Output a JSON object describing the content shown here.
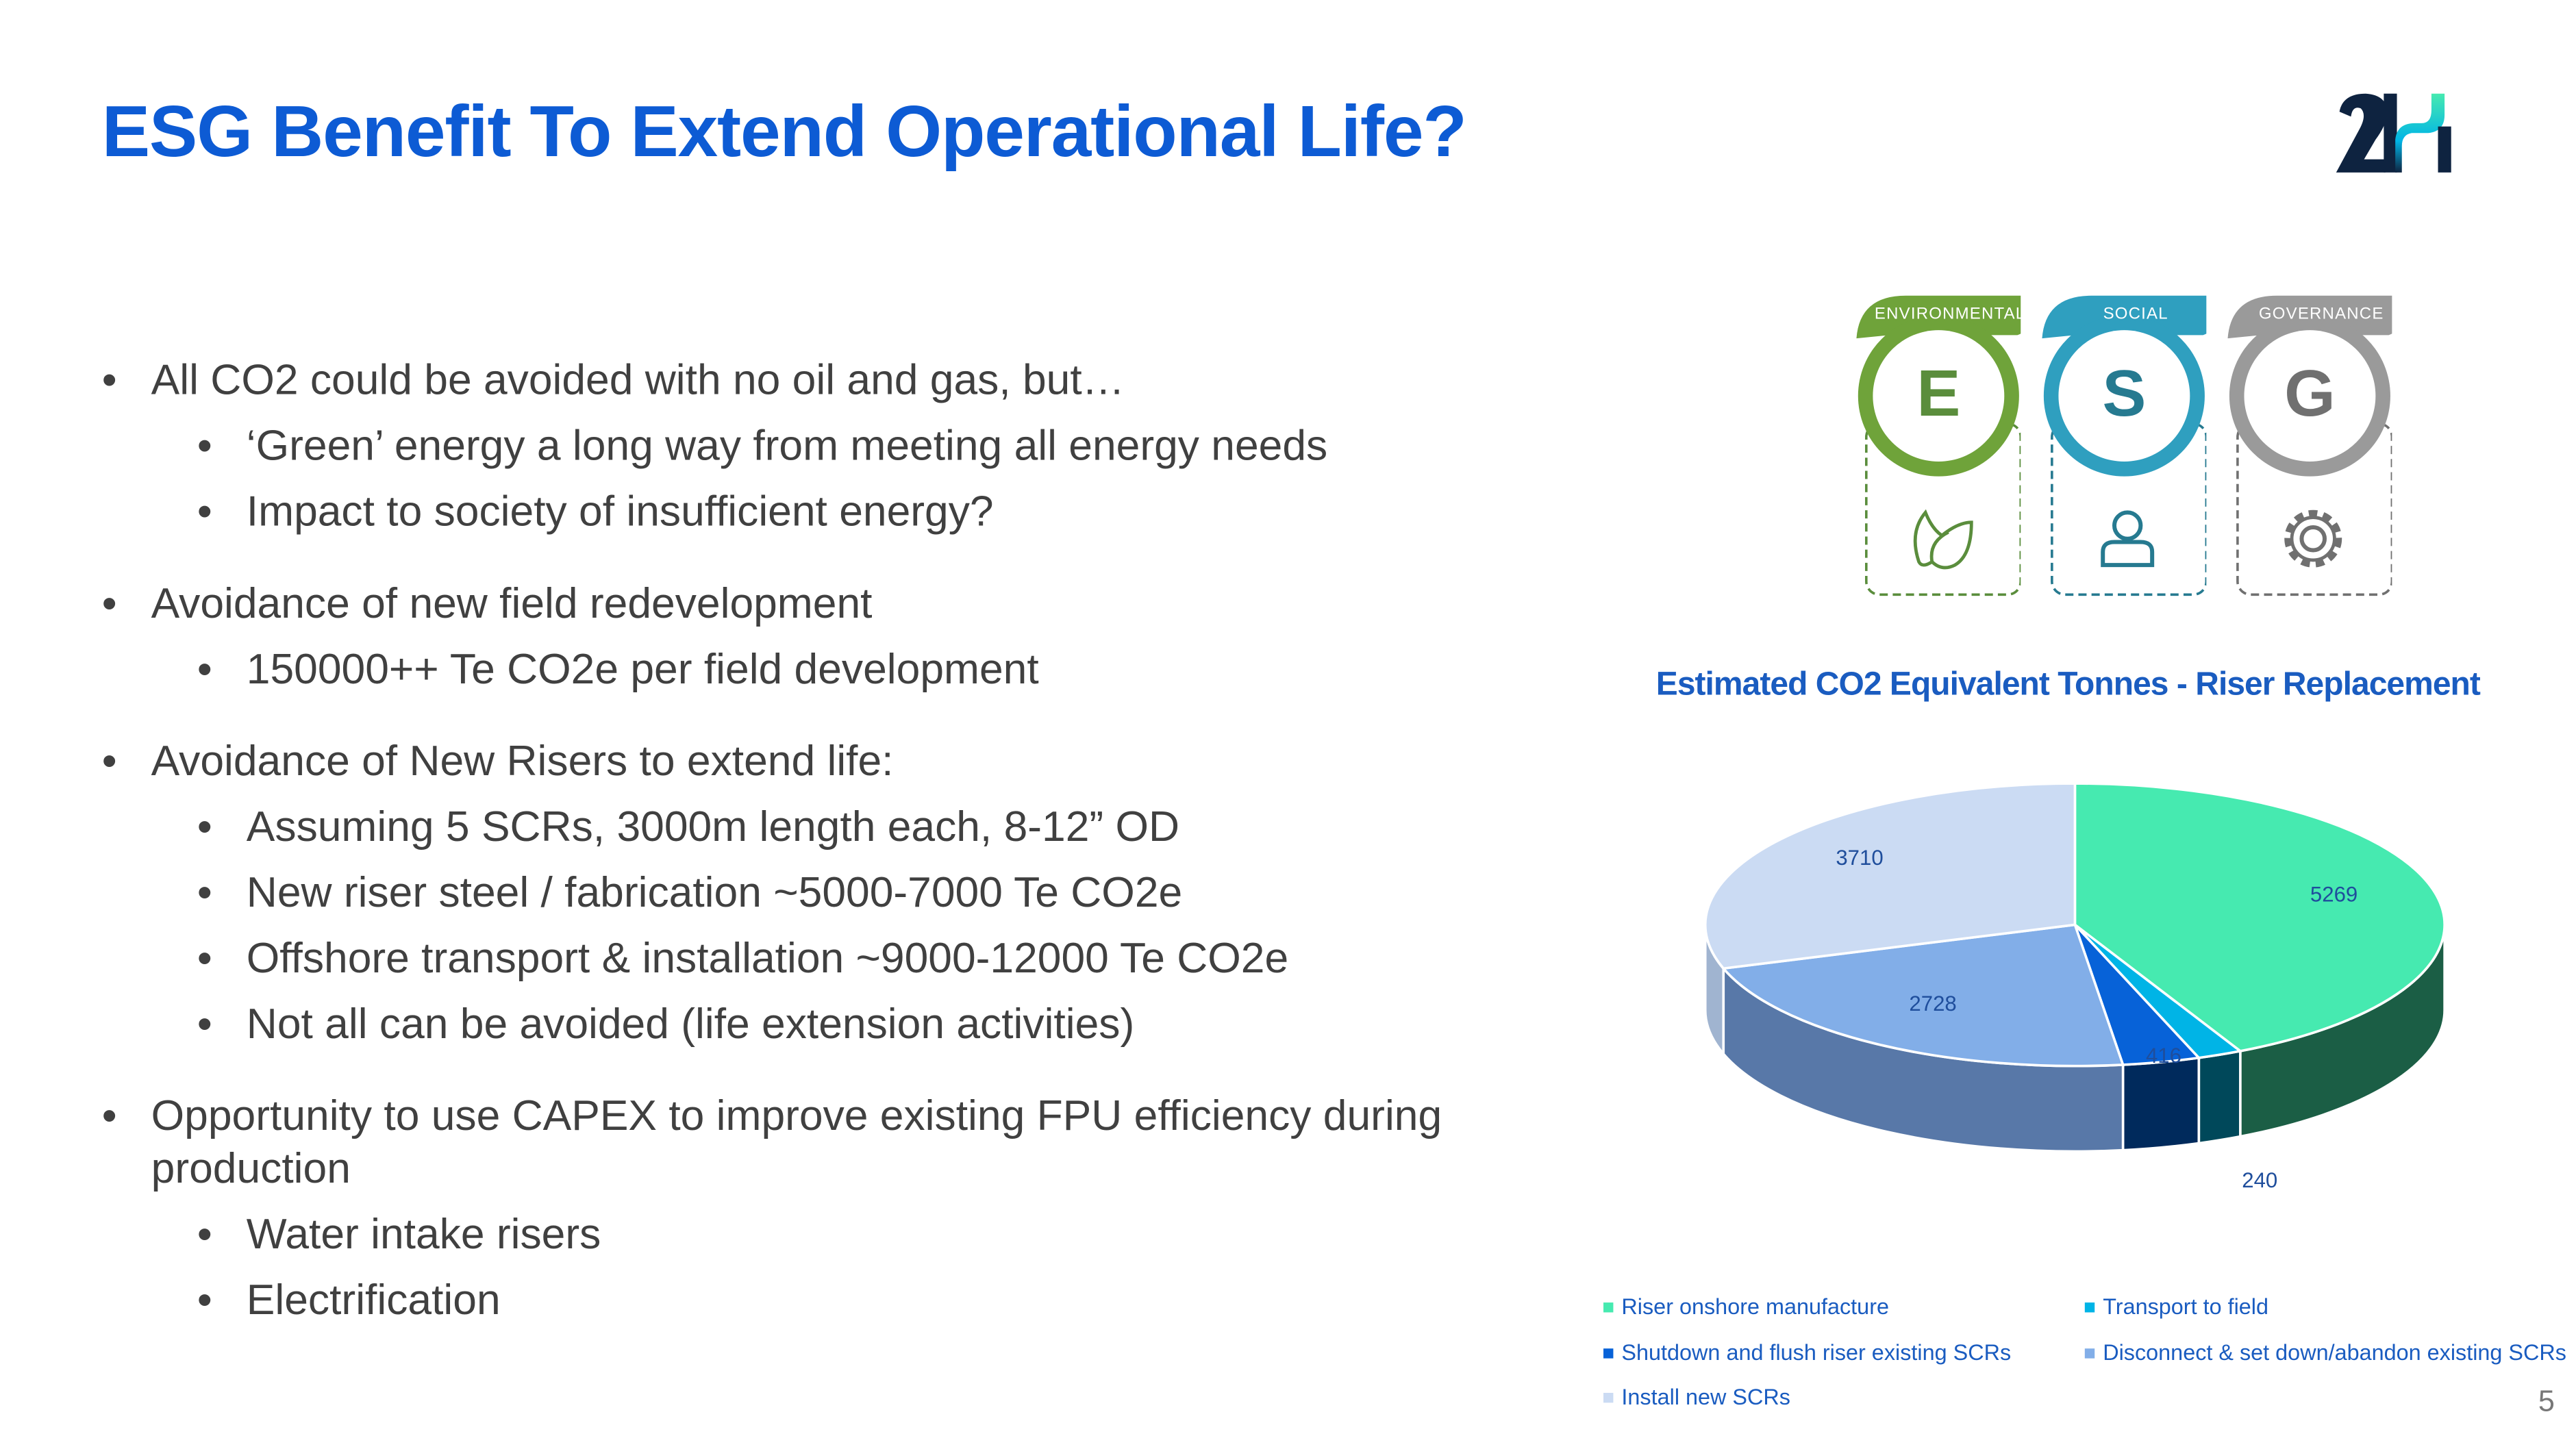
{
  "title": "ESG Benefit To Extend Operational Life?",
  "logo_text": "2H",
  "bullets": [
    {
      "level": 1,
      "text": "All CO2 could be avoided with no oil and gas, but…"
    },
    {
      "level": 2,
      "text": "‘Green’ energy a long way from meeting all energy needs"
    },
    {
      "level": 2,
      "text": "Impact to society of insufficient energy?"
    },
    {
      "level": 1,
      "text": "Avoidance of new field redevelopment",
      "gap": true
    },
    {
      "level": 2,
      "text": "150000++ Te CO2e per field development"
    },
    {
      "level": 1,
      "text": "Avoidance of New Risers to extend life:",
      "gap": true
    },
    {
      "level": 2,
      "text": "Assuming 5 SCRs, 3000m length each,  8-12” OD"
    },
    {
      "level": 2,
      "text": "New riser steel / fabrication ~5000-7000 Te CO2e"
    },
    {
      "level": 2,
      "text": "Offshore transport & installation ~9000-12000 Te CO2e"
    },
    {
      "level": 2,
      "text": "Not all can be avoided (life extension activities)"
    },
    {
      "level": 1,
      "text": "Opportunity to use CAPEX to improve existing FPU efficiency during production",
      "gap": true
    },
    {
      "level": 2,
      "text": "Water intake risers"
    },
    {
      "level": 2,
      "text": "Electrification"
    }
  ],
  "esg": [
    {
      "label": "ENVIRONMENTAL",
      "letter": "E",
      "icon": "leaf-icon",
      "color": "#6fa33a",
      "dark": "#5a8d3c"
    },
    {
      "label": "SOCIAL",
      "letter": "S",
      "icon": "person-icon",
      "color": "#2f9fbf",
      "dark": "#267a90"
    },
    {
      "label": "GOVERNANCE",
      "letter": "G",
      "icon": "gear-icon",
      "color": "#9a9a9a",
      "dark": "#707070"
    }
  ],
  "chart_data": {
    "type": "pie",
    "title": "Estimated CO2 Equivalent Tonnes - Riser Replacement",
    "categories": [
      "Riser onshore manufacture",
      "Transport to field",
      "Shutdown and flush riser existing SCRs",
      "Disconnect & set down/abandon existing SCRs",
      "Install new SCRs"
    ],
    "values": [
      5269,
      240,
      416,
      2728,
      3710
    ],
    "colors": [
      "#46eab0",
      "#00b4e6",
      "#0762d8",
      "#82aee8",
      "#cbdbf3"
    ],
    "side_colors": [
      "#1b5e45",
      "#00485a",
      "#002a5c",
      "#5878a8",
      "#a0b4d0"
    ],
    "legend_position": "bottom"
  },
  "page_number": "5"
}
